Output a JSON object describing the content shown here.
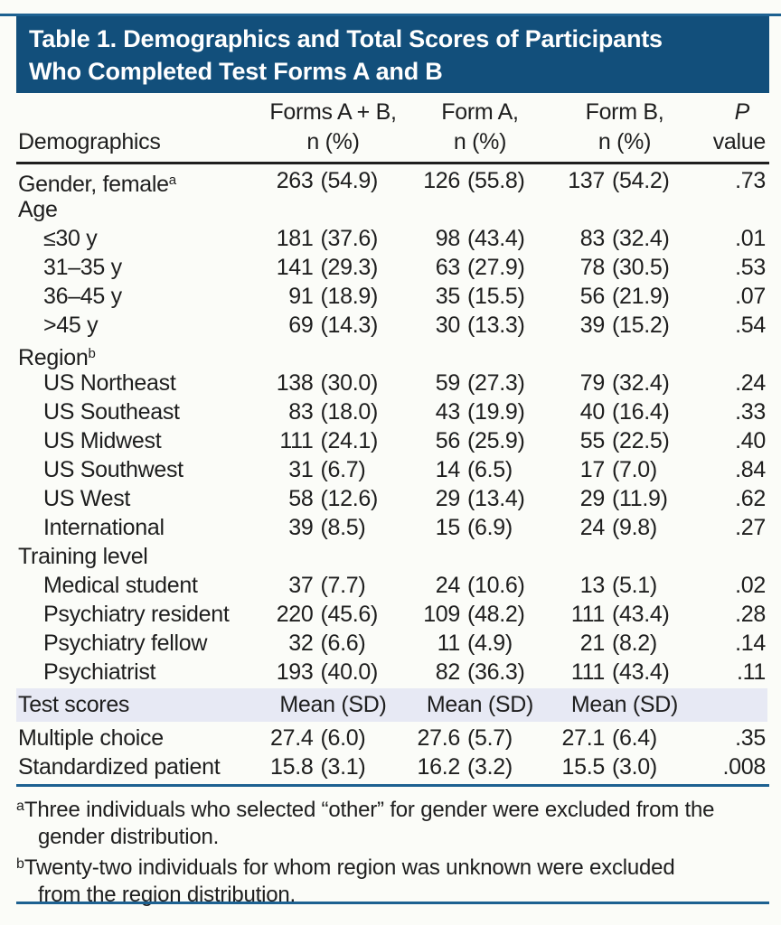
{
  "title": {
    "line1": "Table 1. Demographics and Total Scores of Participants",
    "line2": "Who Completed Test Forms A and B"
  },
  "columns": {
    "demographics_label": "Demographics",
    "groups": [
      {
        "line1": "Forms A + B,",
        "line2": "n (%)"
      },
      {
        "line1": "Form A,",
        "line2": "n (%)"
      },
      {
        "line1": "Form B,",
        "line2": "n (%)"
      }
    ],
    "p": {
      "line1": "P",
      "line2": "value"
    }
  },
  "rows": [
    {
      "t": "row",
      "label": "Gender, female",
      "sup": "a",
      "c": [
        [
          "263",
          "(54.9)"
        ],
        [
          "126",
          "(55.8)"
        ],
        [
          "137",
          "(54.2)"
        ]
      ],
      "p": ".73"
    },
    {
      "t": "sec",
      "label": "Age"
    },
    {
      "t": "sub",
      "label": "≤30 y",
      "c": [
        [
          "181",
          "(37.6)"
        ],
        [
          "98",
          "(43.4)"
        ],
        [
          "83",
          "(32.4)"
        ]
      ],
      "p": ".01"
    },
    {
      "t": "sub",
      "label": "31–35 y",
      "c": [
        [
          "141",
          "(29.3)"
        ],
        [
          "63",
          "(27.9)"
        ],
        [
          "78",
          "(30.5)"
        ]
      ],
      "p": ".53"
    },
    {
      "t": "sub",
      "label": "36–45 y",
      "c": [
        [
          "91",
          "(18.9)"
        ],
        [
          "35",
          "(15.5)"
        ],
        [
          "56",
          "(21.9)"
        ]
      ],
      "p": ".07"
    },
    {
      "t": "sub",
      "label": ">45 y",
      "c": [
        [
          "69",
          "(14.3)"
        ],
        [
          "30",
          "(13.3)"
        ],
        [
          "39",
          "(15.2)"
        ]
      ],
      "p": ".54"
    },
    {
      "t": "sec",
      "label": "Region",
      "sup": "b"
    },
    {
      "t": "sub",
      "label": "US Northeast",
      "c": [
        [
          "138",
          "(30.0)"
        ],
        [
          "59",
          "(27.3)"
        ],
        [
          "79",
          "(32.4)"
        ]
      ],
      "p": ".24"
    },
    {
      "t": "sub",
      "label": "US Southeast",
      "c": [
        [
          "83",
          "(18.0)"
        ],
        [
          "43",
          "(19.9)"
        ],
        [
          "40",
          "(16.4)"
        ]
      ],
      "p": ".33"
    },
    {
      "t": "sub",
      "label": "US Midwest",
      "c": [
        [
          "111",
          "(24.1)"
        ],
        [
          "56",
          "(25.9)"
        ],
        [
          "55",
          "(22.5)"
        ]
      ],
      "p": ".40"
    },
    {
      "t": "sub",
      "label": "US Southwest",
      "c": [
        [
          "31",
          "(6.7)"
        ],
        [
          "14",
          "(6.5)"
        ],
        [
          "17",
          "(7.0)"
        ]
      ],
      "p": ".84"
    },
    {
      "t": "sub",
      "label": "US West",
      "c": [
        [
          "58",
          "(12.6)"
        ],
        [
          "29",
          "(13.4)"
        ],
        [
          "29",
          "(11.9)"
        ]
      ],
      "p": ".62"
    },
    {
      "t": "sub",
      "label": "International",
      "c": [
        [
          "39",
          "(8.5)"
        ],
        [
          "15",
          "(6.9)"
        ],
        [
          "24",
          "(9.8)"
        ]
      ],
      "p": ".27"
    },
    {
      "t": "sec",
      "label": "Training level"
    },
    {
      "t": "sub",
      "label": "Medical student",
      "c": [
        [
          "37",
          "(7.7)"
        ],
        [
          "24",
          "(10.6)"
        ],
        [
          "13",
          "(5.1)"
        ]
      ],
      "p": ".02"
    },
    {
      "t": "sub",
      "label": "Psychiatry resident",
      "c": [
        [
          "220",
          "(45.6)"
        ],
        [
          "109",
          "(48.2)"
        ],
        [
          "111",
          "(43.4)"
        ]
      ],
      "p": ".28"
    },
    {
      "t": "sub",
      "label": "Psychiatry fellow",
      "c": [
        [
          "32",
          "(6.6)"
        ],
        [
          "11",
          "(4.9)"
        ],
        [
          "21",
          "(8.2)"
        ]
      ],
      "p": ".14"
    },
    {
      "t": "sub",
      "label": "Psychiatrist",
      "c": [
        [
          "193",
          "(40.0)"
        ],
        [
          "82",
          "(36.3)"
        ],
        [
          "111",
          "(43.4)"
        ]
      ],
      "p": ".11"
    }
  ],
  "test_scores": {
    "label": "Test scores",
    "cols": [
      "Mean (SD)",
      "Mean (SD)",
      "Mean (SD)"
    ]
  },
  "score_rows": [
    {
      "t": "row",
      "label": "Multiple choice",
      "c": [
        [
          "27.4",
          "(6.0)"
        ],
        [
          "27.6",
          "(5.7)"
        ],
        [
          "27.1",
          "(6.4)"
        ]
      ],
      "p": ".35"
    },
    {
      "t": "row",
      "label": "Standardized patient",
      "c": [
        [
          "15.8",
          "(3.1)"
        ],
        [
          "16.2",
          "(3.2)"
        ],
        [
          "15.5",
          "(3.0)"
        ]
      ],
      "p": ".008"
    }
  ],
  "footnotes": [
    {
      "sup": "a",
      "line1": "Three individuals who selected “other” for gender were excluded from the",
      "line2": "gender distribution."
    },
    {
      "sup": "b",
      "line1": "Twenty-two individuals for whom region was unknown were excluded",
      "line2": "from the region distribution."
    }
  ],
  "colors": {
    "band": "#124f7b",
    "rule_blue": "#1d6191",
    "rule_dark": "#1f1f1f",
    "highlight": "#e7e9f4",
    "text": "#1e1e1e",
    "page_bg": "#fbfcf8"
  }
}
